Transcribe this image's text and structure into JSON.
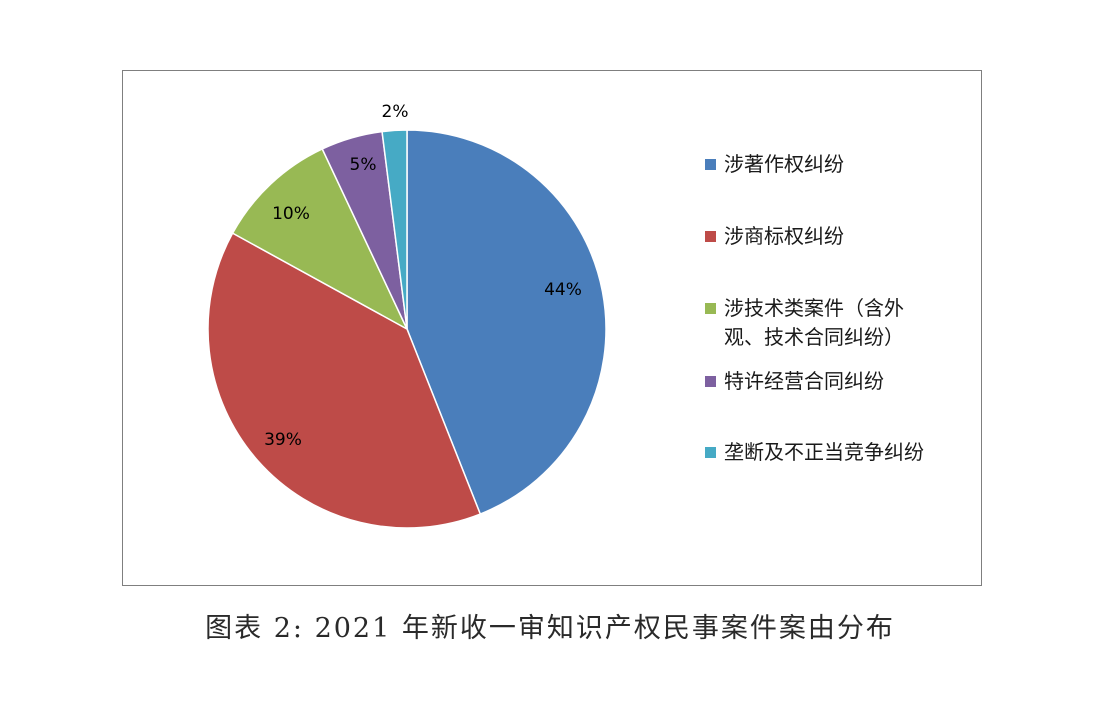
{
  "caption": "图表 2:  2021 年新收一审知识产权民事案件案由分布",
  "chart_data": {
    "type": "pie",
    "title": "",
    "legend_position": "right",
    "slices": [
      {
        "name": "涉著作权纠纷",
        "value": 44,
        "label": "44%",
        "color": "#4a7ebb"
      },
      {
        "name": "涉商标权纠纷",
        "value": 39,
        "label": "39%",
        "color": "#be4b48"
      },
      {
        "name": "涉技术类案件（含外观、技术合同纠纷）",
        "value": 10,
        "label": "10%",
        "color": "#98b954"
      },
      {
        "name": "特许经营合同纠纷",
        "value": 5,
        "label": "5%",
        "color": "#7d60a0"
      },
      {
        "name": "垄断及不正当竞争纠纷",
        "value": 2,
        "label": "2%",
        "color": "#46aac5"
      }
    ],
    "legend": [
      {
        "lines": [
          "涉著作权纠纷"
        ]
      },
      {
        "lines": [
          "涉商标权纠纷"
        ]
      },
      {
        "lines": [
          "涉技术类案件（含外",
          "观、技术合同纠纷）"
        ]
      },
      {
        "lines": [
          "特许经营合同纠纷"
        ]
      },
      {
        "lines": [
          "垄断及不正当竞争纠纷"
        ]
      }
    ]
  }
}
